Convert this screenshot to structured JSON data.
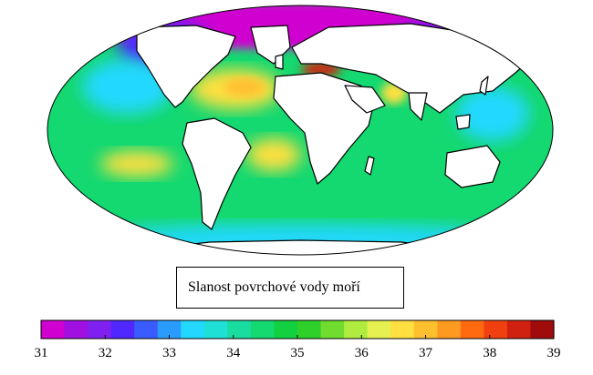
{
  "legend": {
    "title": "Slanost povrchové vody moří",
    "min": 31,
    "max": 39,
    "ticks": [
      "31",
      "32",
      "33",
      "34",
      "35",
      "36",
      "37",
      "38",
      "39"
    ],
    "colors": [
      "#d000d0",
      "#a010e0",
      "#8020f0",
      "#5028ff",
      "#3a5cff",
      "#2a9cff",
      "#22d8ff",
      "#1ee0d4",
      "#18dca0",
      "#14d870",
      "#12d040",
      "#30d02a",
      "#70dc30",
      "#b0ec40",
      "#e6f050",
      "#ffe040",
      "#ffc030",
      "#ff9a20",
      "#ff6a10",
      "#f04010",
      "#d02010",
      "#a00c0c"
    ]
  },
  "map": {
    "projection": "Mollweide",
    "colors": {
      "ocean_base": "#14d870",
      "land": "#ffffff",
      "coast": "#000000",
      "arctic": "#d000d0",
      "polar_low": "#5028ff",
      "low": "#22d8ff",
      "high": "#ffe040",
      "very_high": "#ffc030",
      "med": "#d02010"
    }
  }
}
